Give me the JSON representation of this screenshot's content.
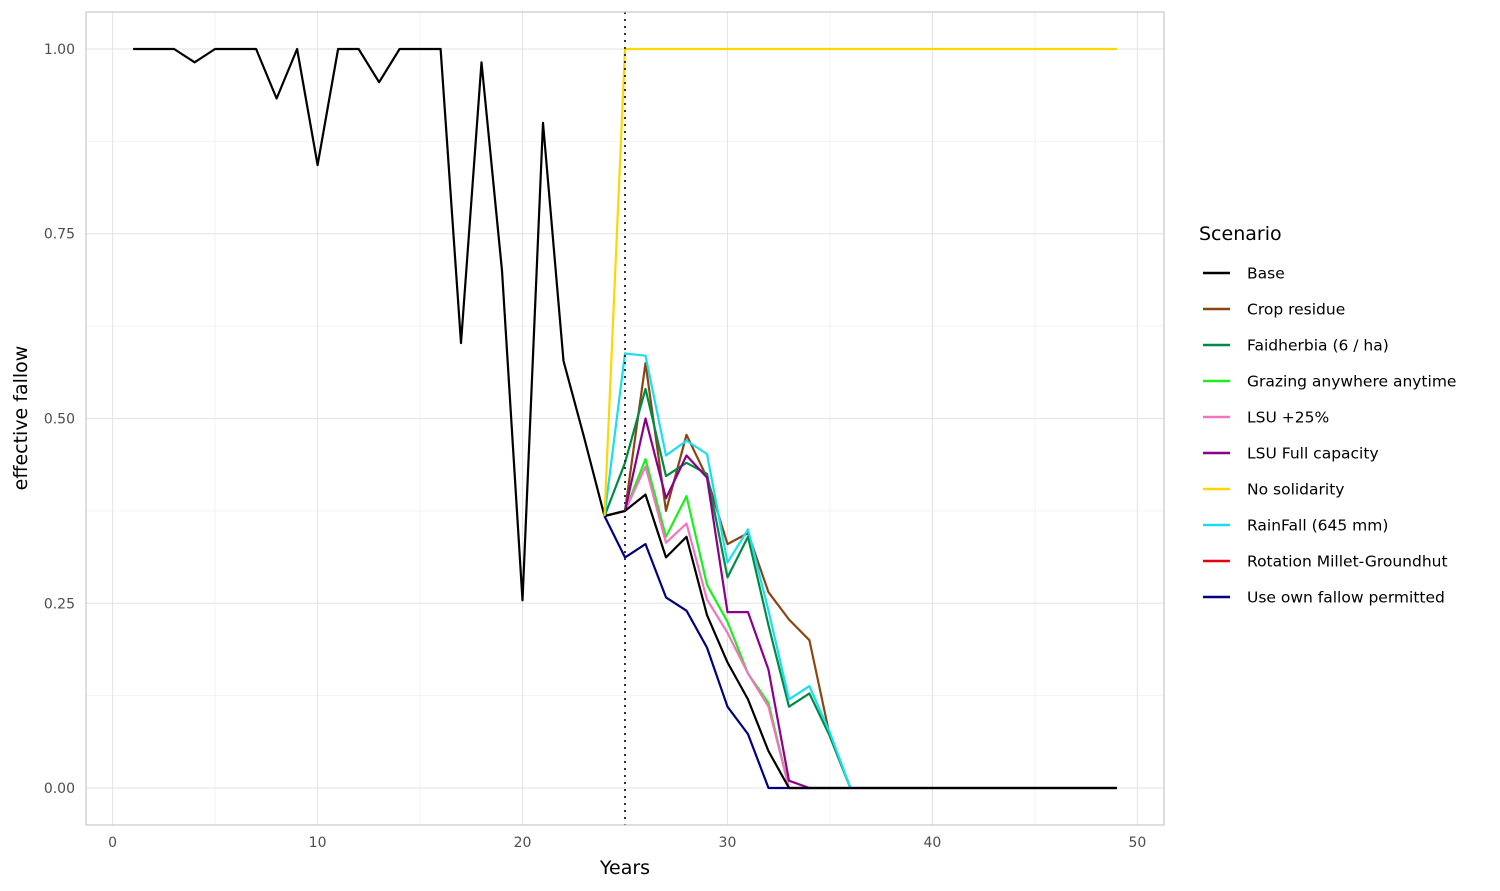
{
  "chart_data": {
    "type": "line",
    "title": "",
    "xlabel": "Years",
    "ylabel": "effective fallow",
    "xlim": [
      -1.3,
      51.3
    ],
    "ylim": [
      -0.05,
      1.05
    ],
    "x_ticks": [
      0,
      10,
      20,
      30,
      40,
      50
    ],
    "y_ticks": [
      0,
      0.25,
      0.5,
      0.75,
      1.0
    ],
    "x_tick_labels": [
      "0",
      "10",
      "20",
      "30",
      "40",
      "50"
    ],
    "y_tick_labels": [
      "0.00",
      "0.25",
      "0.50",
      "0.75",
      "1.00"
    ],
    "vline_x": 25,
    "grid": true,
    "legend": {
      "title": "Scenario",
      "placement": "right"
    },
    "history": {
      "color": "#000000",
      "x": [
        1,
        2,
        3,
        4,
        5,
        6,
        7,
        8,
        9,
        10,
        11,
        12,
        13,
        14,
        15,
        16,
        17,
        18,
        19,
        20,
        21,
        22,
        23,
        24
      ],
      "y": [
        1.0,
        1.0,
        1.0,
        0.982,
        1.0,
        1.0,
        1.0,
        0.933,
        1.0,
        0.843,
        1.0,
        1.0,
        0.955,
        1.0,
        1.0,
        1.0,
        0.602,
        0.982,
        0.7,
        0.254,
        0.9,
        0.578,
        0.475,
        0.368
      ]
    },
    "series": [
      {
        "name": "Base",
        "color": "#000000",
        "x": [
          24,
          25,
          26,
          27,
          28,
          29,
          30,
          31,
          32,
          33,
          34,
          35,
          36,
          37,
          38,
          39,
          40,
          41,
          42,
          43,
          44,
          45,
          46,
          47,
          48,
          49
        ],
        "y": [
          0.368,
          0.375,
          0.397,
          0.312,
          0.34,
          0.234,
          0.17,
          0.12,
          0.05,
          0.0,
          0.0,
          0.0,
          0.0,
          0.0,
          0.0,
          0.0,
          0.0,
          0.0,
          0.0,
          0.0,
          0.0,
          0.0,
          0.0,
          0.0,
          0.0,
          0.0
        ]
      },
      {
        "name": "Crop residue",
        "color": "#8B4513",
        "x": [
          24,
          25,
          26,
          27,
          28,
          29,
          30,
          31,
          32,
          33,
          34,
          35,
          36
        ],
        "y": [
          0.368,
          0.375,
          0.575,
          0.375,
          0.478,
          0.42,
          0.33,
          0.345,
          0.265,
          0.228,
          0.2,
          0.07,
          0.0
        ]
      },
      {
        "name": "Faidherbia (6 / ha)",
        "color": "#008B45",
        "x": [
          24,
          25,
          26,
          27,
          28,
          29,
          30,
          31,
          32,
          33,
          34,
          35,
          36
        ],
        "y": [
          0.368,
          0.44,
          0.54,
          0.422,
          0.44,
          0.425,
          0.285,
          0.34,
          0.22,
          0.11,
          0.128,
          0.07,
          0.0
        ]
      },
      {
        "name": "Grazing anywhere anytime",
        "color": "#1AF01A",
        "x": [
          24,
          25,
          26,
          27,
          28,
          29,
          30,
          31,
          32,
          33
        ],
        "y": [
          0.368,
          0.375,
          0.445,
          0.34,
          0.395,
          0.275,
          0.225,
          0.155,
          0.115,
          0.0
        ]
      },
      {
        "name": "LSU +25%",
        "color": "#F273C0",
        "x": [
          24,
          25,
          26,
          27,
          28,
          29,
          30,
          31,
          32,
          33
        ],
        "y": [
          0.368,
          0.375,
          0.435,
          0.332,
          0.358,
          0.255,
          0.21,
          0.155,
          0.11,
          0.0
        ]
      },
      {
        "name": "LSU Full capacity",
        "color": "#8B008B",
        "x": [
          24,
          25,
          26,
          27,
          28,
          29,
          30,
          31,
          32,
          33,
          34
        ],
        "y": [
          0.368,
          0.375,
          0.5,
          0.392,
          0.45,
          0.42,
          0.238,
          0.238,
          0.16,
          0.01,
          0.0
        ]
      },
      {
        "name": "No solidarity",
        "color": "#FFD700",
        "x": [
          24,
          25,
          26,
          27,
          28,
          29,
          30,
          31,
          32,
          33,
          34,
          35,
          36,
          37,
          38,
          39,
          40,
          41,
          42,
          43,
          44,
          45,
          46,
          47,
          48,
          49
        ],
        "y": [
          0.368,
          1.0,
          1.0,
          1.0,
          1.0,
          1.0,
          1.0,
          1.0,
          1.0,
          1.0,
          1.0,
          1.0,
          1.0,
          1.0,
          1.0,
          1.0,
          1.0,
          1.0,
          1.0,
          1.0,
          1.0,
          1.0,
          1.0,
          1.0,
          1.0,
          1.0
        ]
      },
      {
        "name": "RainFall (645 mm)",
        "color": "#1ADDF0",
        "x": [
          24,
          25,
          26,
          27,
          28,
          29,
          30,
          31,
          32,
          33,
          34,
          35,
          36
        ],
        "y": [
          0.368,
          0.588,
          0.585,
          0.45,
          0.47,
          0.452,
          0.305,
          0.35,
          0.24,
          0.12,
          0.138,
          0.075,
          0.0
        ]
      },
      {
        "name": "Rotation Millet-Groundhut",
        "color": "#E8000B",
        "x": [],
        "y": []
      },
      {
        "name": "Use own fallow permitted",
        "color": "#000080",
        "x": [
          24,
          25,
          26,
          27,
          28,
          29,
          30,
          31,
          32,
          33,
          34,
          35,
          36,
          37,
          38,
          39,
          40,
          41,
          42,
          43,
          44,
          45,
          46,
          47,
          48,
          49
        ],
        "y": [
          0.368,
          0.312,
          0.33,
          0.258,
          0.24,
          0.19,
          0.11,
          0.073,
          0.0,
          0.0,
          0.0,
          0.0,
          0.0,
          0.0,
          0.0,
          0.0,
          0.0,
          0.0,
          0.0,
          0.0,
          0.0,
          0.0,
          0.0,
          0.0,
          0.0,
          0.0
        ]
      }
    ]
  }
}
